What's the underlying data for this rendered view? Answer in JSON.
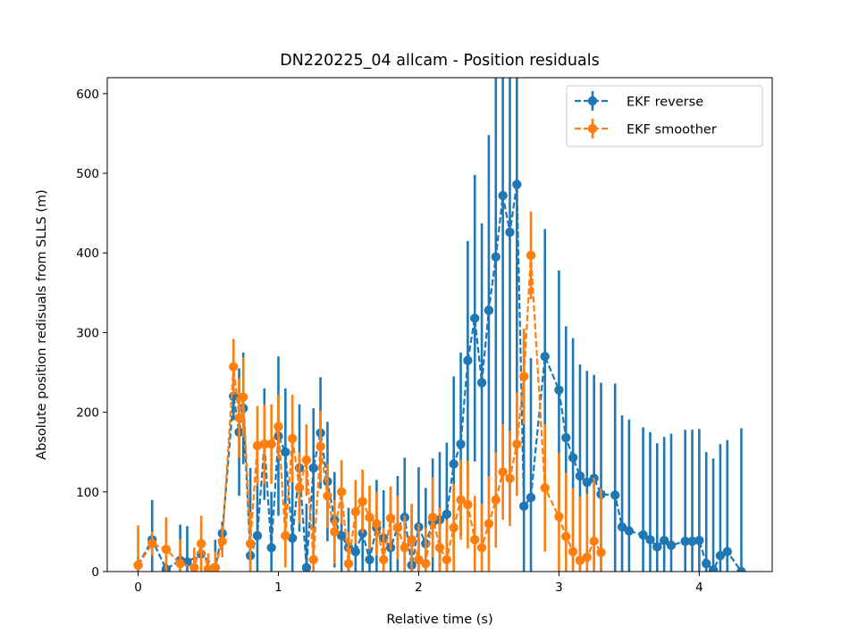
{
  "chart_data": {
    "type": "line",
    "title": "DN220225_04 allcam - Position residuals",
    "xlabel": "Relative time (s)",
    "ylabel": "Absolute position redisuals from SLLS (m)",
    "xlim": [
      -0.22,
      4.52
    ],
    "ylim": [
      0,
      620
    ],
    "xticks": [
      0,
      1,
      2,
      3,
      4
    ],
    "yticks": [
      0,
      100,
      200,
      300,
      400,
      500,
      600
    ],
    "grid": false,
    "legend_position": "top-right",
    "series": [
      {
        "name": "EKF reverse",
        "color": "#1f77b4",
        "linestyle": "dashed",
        "marker": "circle",
        "x": [
          0.0,
          0.1,
          0.2,
          0.3,
          0.35,
          0.45,
          0.55,
          0.6,
          0.68,
          0.72,
          0.75,
          0.8,
          0.85,
          0.9,
          0.95,
          1.0,
          1.05,
          1.1,
          1.15,
          1.2,
          1.25,
          1.3,
          1.35,
          1.4,
          1.45,
          1.5,
          1.55,
          1.6,
          1.65,
          1.7,
          1.75,
          1.8,
          1.85,
          1.9,
          1.95,
          2.0,
          2.05,
          2.1,
          2.15,
          2.2,
          2.25,
          2.3,
          2.35,
          2.4,
          2.45,
          2.5,
          2.55,
          2.6,
          2.65,
          2.7,
          2.75,
          2.8,
          2.9,
          3.0,
          3.05,
          3.1,
          3.15,
          3.2,
          3.25,
          3.3,
          3.4,
          3.45,
          3.5,
          3.6,
          3.65,
          3.7,
          3.75,
          3.8,
          3.9,
          3.95,
          4.0,
          4.05,
          4.1,
          4.15,
          4.2,
          4.3
        ],
        "y": [
          8,
          40,
          3,
          14,
          12,
          22,
          5,
          48,
          220,
          175,
          205,
          20,
          45,
          160,
          30,
          170,
          150,
          42,
          130,
          5,
          130,
          174,
          113,
          65,
          45,
          30,
          25,
          48,
          15,
          55,
          42,
          30,
          55,
          68,
          8,
          56,
          35,
          62,
          65,
          72,
          135,
          160,
          265,
          318,
          237,
          328,
          395,
          472,
          426,
          486,
          82,
          93,
          270,
          228,
          168,
          143,
          120,
          112,
          117,
          97,
          96,
          56,
          51,
          46,
          40,
          31,
          39,
          33,
          38,
          38,
          39,
          10,
          2,
          20,
          25,
          0
        ],
        "yerr": [
          10,
          50,
          10,
          45,
          45,
          35,
          35,
          15,
          30,
          80,
          70,
          110,
          90,
          70,
          70,
          100,
          80,
          80,
          80,
          80,
          75,
          70,
          75,
          60,
          60,
          50,
          50,
          60,
          60,
          60,
          60,
          65,
          65,
          75,
          75,
          75,
          70,
          80,
          85,
          90,
          110,
          115,
          150,
          180,
          200,
          220,
          280,
          340,
          360,
          340,
          220,
          175,
          160,
          150,
          140,
          150,
          140,
          140,
          130,
          140,
          140,
          140,
          140,
          135,
          135,
          130,
          130,
          140,
          140,
          140,
          140,
          140,
          140,
          140,
          140,
          180
        ]
      },
      {
        "name": "EKF smoother",
        "color": "#ff7f0e",
        "linestyle": "dashed",
        "marker": "circle",
        "x": [
          0.0,
          0.1,
          0.2,
          0.3,
          0.4,
          0.45,
          0.5,
          0.55,
          0.6,
          0.68,
          0.72,
          0.75,
          0.8,
          0.85,
          0.9,
          0.95,
          1.0,
          1.05,
          1.1,
          1.15,
          1.2,
          1.25,
          1.3,
          1.35,
          1.4,
          1.45,
          1.5,
          1.55,
          1.6,
          1.65,
          1.7,
          1.75,
          1.8,
          1.85,
          1.9,
          1.95,
          2.0,
          2.05,
          2.1,
          2.15,
          2.2,
          2.25,
          2.3,
          2.35,
          2.4,
          2.45,
          2.5,
          2.55,
          2.6,
          2.65,
          2.7,
          2.75,
          2.8,
          2.9,
          3.0,
          3.05,
          3.1,
          3.15,
          3.2,
          3.25,
          3.3
        ],
        "y": [
          8,
          35,
          28,
          10,
          5,
          35,
          3,
          5,
          38,
          257,
          193,
          219,
          35,
          158,
          160,
          160,
          182,
          45,
          167,
          105,
          140,
          15,
          157,
          95,
          50,
          100,
          10,
          75,
          88,
          68,
          60,
          15,
          67,
          55,
          30,
          40,
          15,
          10,
          68,
          30,
          15,
          55,
          90,
          84,
          40,
          30,
          60,
          90,
          125,
          117,
          160,
          245,
          397,
          105,
          69,
          44,
          25,
          14,
          18,
          38,
          24
        ],
        "yerr": [
          50,
          15,
          40,
          30,
          25,
          35,
          20,
          20,
          20,
          35,
          50,
          50,
          40,
          50,
          50,
          50,
          40,
          40,
          55,
          45,
          45,
          40,
          45,
          40,
          40,
          40,
          40,
          40,
          40,
          40,
          40,
          40,
          40,
          40,
          40,
          45,
          45,
          45,
          50,
          50,
          50,
          55,
          50,
          55,
          55,
          55,
          60,
          60,
          60,
          60,
          65,
          60,
          55,
          80,
          80,
          80,
          80,
          80,
          80,
          80,
          80
        ]
      }
    ]
  }
}
